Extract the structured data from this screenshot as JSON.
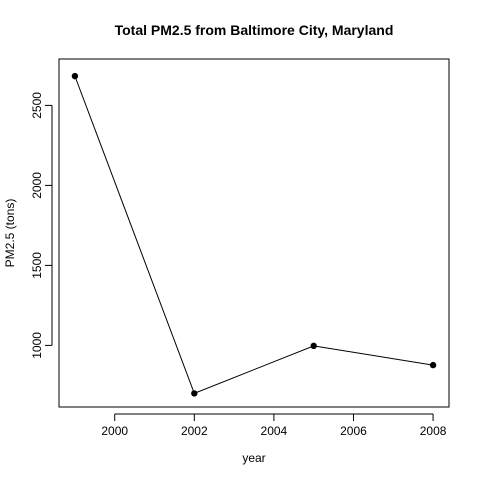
{
  "chart_data": {
    "type": "line",
    "title": "Total PM2.5 from Baltimore City, Maryland",
    "xlabel": "year",
    "ylabel": "PM2.5 (tons)",
    "x": [
      1999,
      2002,
      2005,
      2008
    ],
    "series": [
      {
        "values": [
          2683,
          700,
          997,
          877
        ]
      }
    ],
    "xlim": [
      1998.6,
      2008.4
    ],
    "ylim": [
      615,
      2790
    ],
    "xticks": [
      2000,
      2002,
      2004,
      2006,
      2008
    ],
    "yticks": [
      1000,
      1500,
      2000,
      2500
    ],
    "xtick_labels": [
      "2000",
      "2002",
      "2004",
      "2006",
      "2008"
    ],
    "ytick_labels": [
      "1000",
      "1500",
      "2000",
      "2500"
    ],
    "grid": false,
    "markers": "filled-circle",
    "line_color": "#000000",
    "background_color": "#ffffff"
  }
}
